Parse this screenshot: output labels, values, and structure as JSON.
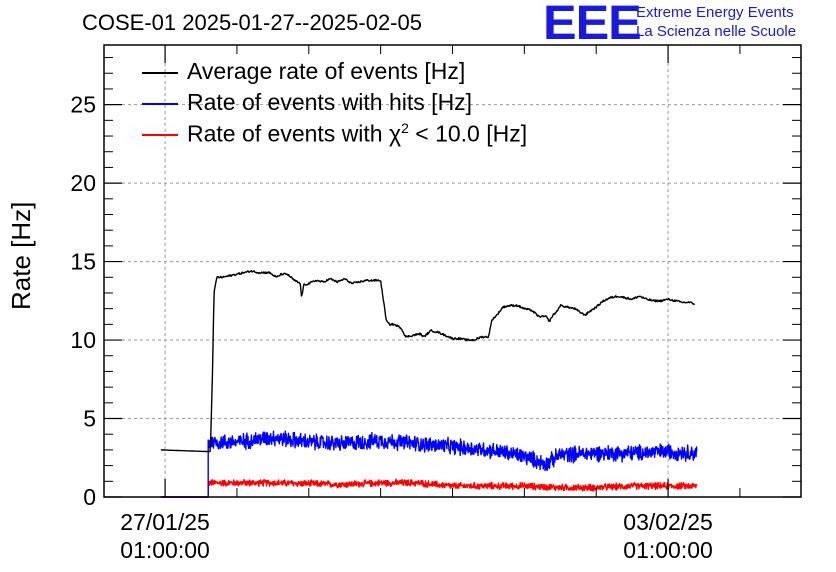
{
  "chart_data": {
    "type": "line",
    "title": "COSE-01 2025-01-27--2025-02-05",
    "ylabel": "Rate [Hz]",
    "xlabel": "",
    "ylim": [
      0,
      28.8
    ],
    "y_ticks": [
      0,
      5,
      10,
      15,
      20,
      25
    ],
    "y_tick_labels": [
      "0",
      "5",
      "10",
      "15",
      "20",
      "25"
    ],
    "xlim_days": [
      -0.85,
      8.85
    ],
    "x_ticks": [
      {
        "day": 0,
        "date": "27/01/25",
        "time": "01:00:00"
      },
      {
        "day": 7,
        "date": "03/02/25",
        "time": "01:00:00"
      }
    ],
    "grid": true,
    "legend_position": "top-left",
    "series": [
      {
        "name": "Average rate of events [Hz]",
        "color": "#000000",
        "points_days": [
          -0.06,
          0.57,
          0.63,
          0.66,
          0.68,
          0.72,
          0.8,
          0.9,
          1.0,
          1.1,
          1.2,
          1.3,
          1.45,
          1.55,
          1.62,
          1.7,
          1.8,
          1.88,
          1.9,
          1.93,
          2.0,
          2.1,
          2.2,
          2.3,
          2.4,
          2.5,
          2.6,
          2.7,
          2.8,
          3.0,
          3.08,
          3.12,
          3.18,
          3.28,
          3.35,
          3.45,
          3.55,
          3.6,
          3.7,
          3.8,
          3.9,
          4.0,
          4.1,
          4.2,
          4.3,
          4.4,
          4.5,
          4.55,
          4.62,
          4.7,
          4.8,
          4.9,
          5.0,
          5.1,
          5.2,
          5.3,
          5.35,
          5.4,
          5.45,
          5.5,
          5.6,
          5.7,
          5.8,
          5.85,
          5.9,
          6.0,
          6.1,
          6.2,
          6.3,
          6.4,
          6.5,
          6.6,
          6.7,
          6.8,
          6.9,
          7.0,
          7.1,
          7.2,
          7.3,
          7.37
        ],
        "values": [
          3.0,
          2.9,
          2.9,
          8.0,
          13.0,
          14.0,
          14.0,
          14.1,
          14.2,
          14.3,
          14.4,
          14.3,
          14.3,
          14.0,
          14.2,
          14.2,
          13.8,
          13.6,
          12.7,
          13.5,
          13.6,
          13.8,
          13.7,
          13.9,
          13.7,
          13.9,
          13.6,
          13.7,
          13.8,
          13.8,
          11.2,
          11.0,
          11.0,
          10.8,
          10.2,
          10.3,
          10.4,
          10.2,
          10.6,
          10.5,
          10.3,
          10.1,
          10.1,
          10.0,
          10.0,
          10.2,
          10.2,
          11.3,
          11.6,
          12.1,
          12.2,
          12.2,
          12.0,
          11.9,
          11.5,
          11.5,
          11.2,
          11.6,
          11.8,
          12.2,
          12.1,
          12.0,
          11.7,
          11.6,
          11.8,
          12.1,
          12.5,
          12.7,
          12.8,
          12.7,
          12.6,
          12.8,
          12.6,
          12.5,
          12.5,
          12.6,
          12.5,
          12.4,
          12.4,
          12.3
        ]
      },
      {
        "name": "Rate of events with hits [Hz]",
        "color": "#0000ff",
        "points_days": [
          -0.06,
          0.59,
          0.6,
          0.6,
          1.0,
          1.5,
          2.0,
          2.5,
          3.0,
          3.5,
          4.0,
          4.5,
          5.0,
          5.3,
          5.5,
          6.0,
          6.5,
          7.0,
          7.4
        ],
        "values": [
          0,
          0,
          0,
          3.5,
          3.5,
          3.8,
          3.5,
          3.4,
          3.6,
          3.4,
          3.2,
          3.0,
          2.6,
          2.1,
          2.7,
          2.8,
          2.8,
          2.9,
          2.8
        ],
        "noise_amplitude": 0.6
      },
      {
        "name": "Rate of events with χ² < 10.0 [Hz]",
        "color": "#ff0000",
        "points_days": [
          -0.06,
          0.59,
          0.6,
          0.6,
          1.5,
          2.5,
          3.0,
          3.5,
          4.0,
          5.0,
          5.5,
          6.0,
          6.5,
          7.0,
          7.4
        ],
        "values": [
          0,
          0,
          0,
          0.9,
          0.9,
          0.8,
          0.9,
          0.9,
          0.7,
          0.7,
          0.6,
          0.6,
          0.7,
          0.7,
          0.7
        ],
        "noise_amplitude": 0.25
      }
    ]
  },
  "legend": [
    {
      "label": "Average rate of events [Hz]",
      "color": "#000000"
    },
    {
      "label": "Rate of events with hits [Hz]",
      "color": "#0000ff"
    },
    {
      "label_prefix": "Rate of events with ",
      "label_chi": "χ",
      "label_sup": "2",
      "label_suffix": " < 10.0 [Hz]",
      "color": "#ff0000"
    }
  ],
  "logo": {
    "mark": "EEE",
    "line1": "Extreme Energy Events",
    "line2": "La Scienza nelle Scuole",
    "color": "#1a1adf"
  }
}
